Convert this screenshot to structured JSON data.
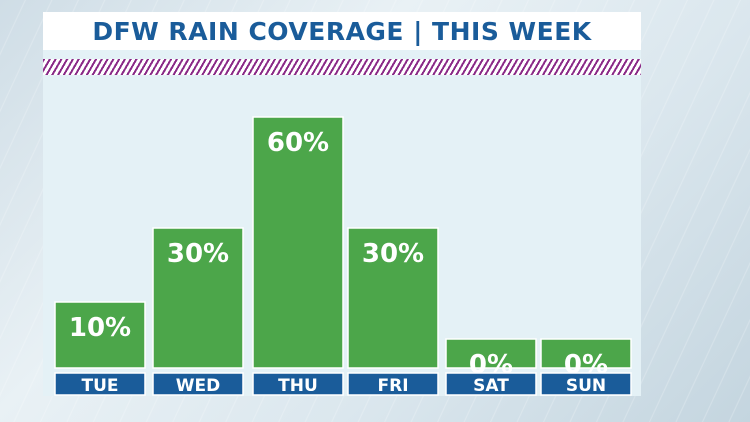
{
  "chart_data": {
    "type": "bar",
    "title": "DFW RAIN COVERAGE | THIS WEEK",
    "categories": [
      "TUE",
      "WED",
      "THU",
      "FRI",
      "SAT",
      "SUN"
    ],
    "values": [
      10,
      30,
      60,
      30,
      0,
      0
    ],
    "value_labels": [
      "10%",
      "30%",
      "60%",
      "30%",
      "0%",
      "0%"
    ],
    "ylim": [
      0,
      60
    ],
    "grid": false,
    "colors": {
      "bar": "#4ca64a",
      "bar_border": "#ffffff",
      "day_label_bg": "#1a5c9a",
      "title": "#1a5c9a",
      "hatch": "#8a2a87"
    }
  }
}
